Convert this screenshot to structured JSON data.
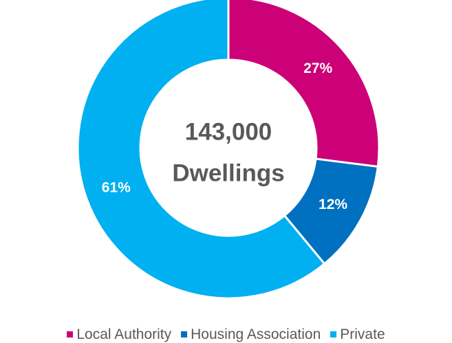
{
  "chart_data": {
    "type": "donut",
    "center_text": [
      "143,000",
      "Dwellings"
    ],
    "categories": [
      "Local Authority",
      "Housing Association",
      "Private"
    ],
    "values": [
      27,
      12,
      61
    ],
    "value_labels": [
      "27%",
      "12%",
      "61%"
    ],
    "colors": [
      "#cc0077",
      "#0070c0",
      "#00b0f0"
    ],
    "legend": "bottom"
  }
}
